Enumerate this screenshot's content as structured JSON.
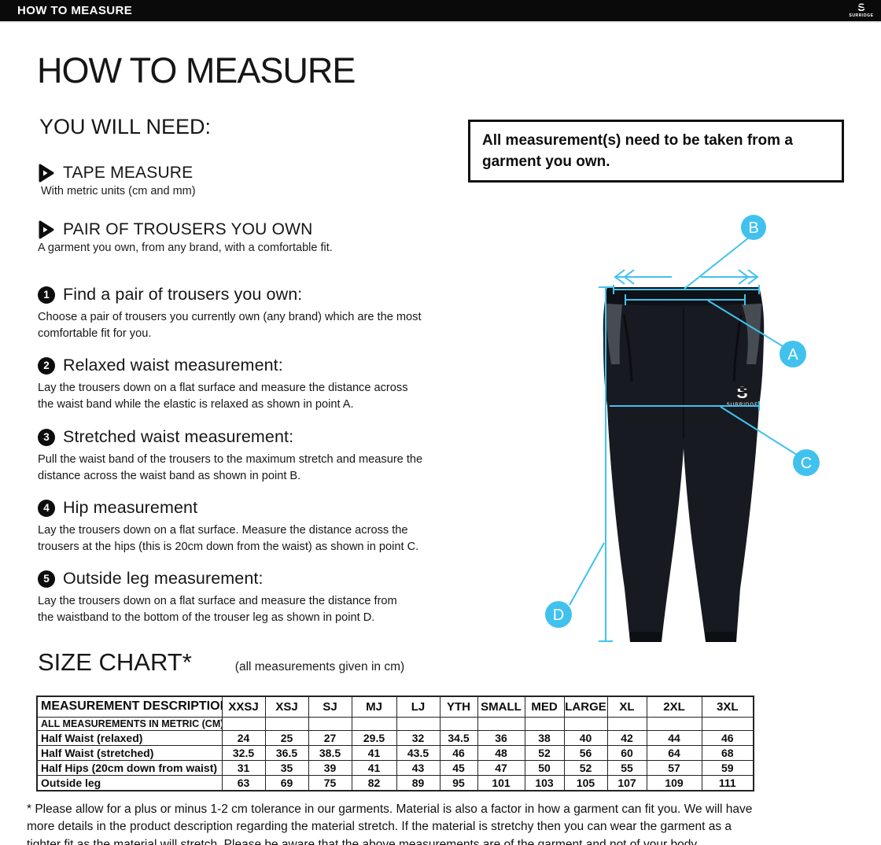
{
  "header": {
    "title": "HOW TO MEASURE",
    "brand_initial": "S",
    "brand": "SURRIDGE"
  },
  "page": {
    "title": "HOW TO MEASURE",
    "you_will_need": {
      "heading": "YOU WILL NEED:",
      "items": [
        {
          "label": "TAPE MEASURE",
          "description": "With metric units (cm and mm)"
        },
        {
          "label": "PAIR OF TROUSERS YOU OWN",
          "description": "A garment you own, from any brand, with a comfortable fit."
        }
      ]
    },
    "note": "All measurement(s) need to be taken from a\ngarment you own.",
    "steps": [
      {
        "number": "1",
        "title": "Find a pair of trousers you own:",
        "description": "Choose a pair of trousers you currently own (any brand) which are the most\ncomfortable fit for you."
      },
      {
        "number": "2",
        "title": "Relaxed waist measurement:",
        "description": "Lay the trousers down on a flat surface and measure the distance across\nthe waist band while the elastic is relaxed as shown in point A."
      },
      {
        "number": "3",
        "title": "Stretched waist measurement:",
        "description": "Pull the waist band of the trousers to the maximum stretch and measure the\ndistance across the waist band as shown in point B."
      },
      {
        "number": "4",
        "title": "Hip measurement",
        "description": "Lay the trousers down on a flat surface. Measure the distance across the\ntrousers at the hips (this is 20cm down from the waist)  as shown in point C."
      },
      {
        "number": "5",
        "title": "Outside leg measurement:",
        "description": "Lay the trousers down on a flat surface and measure the distance from\nthe waistband to the bottom of the trouser  leg as shown in point D."
      }
    ],
    "diagram": {
      "labels": {
        "a": "A",
        "b": "B",
        "c": "C",
        "d": "D"
      },
      "logo_initial": "S",
      "logo_text": "SURRIDGE",
      "annotation_color": "#41c2ee",
      "garment_color": "#171a20",
      "panel_color": "#474b52"
    },
    "size_chart": {
      "heading": "SIZE CHART*",
      "subheading": "(all measurements given in cm)",
      "columns": [
        "MEASUREMENT DESCRIPTION",
        "XXSJ",
        "XSJ",
        "SJ",
        "MJ",
        "LJ",
        "YTH",
        "SMALL",
        "MED",
        "LARGE",
        "XL",
        "2XL",
        "3XL"
      ],
      "metric_row_label": "ALL MEASUREMENTS IN METRIC (CM)",
      "rows": [
        {
          "label": "Half Waist (relaxed)",
          "values": [
            "24",
            "25",
            "27",
            "29.5",
            "32",
            "34.5",
            "36",
            "38",
            "40",
            "42",
            "44",
            "46"
          ]
        },
        {
          "label": "Half Waist (stretched)",
          "values": [
            "32.5",
            "36.5",
            "38.5",
            "41",
            "43.5",
            "46",
            "48",
            "52",
            "56",
            "60",
            "64",
            "68"
          ]
        },
        {
          "label": "Half Hips (20cm down from waist)",
          "values": [
            "31",
            "35",
            "39",
            "41",
            "43",
            "45",
            "47",
            "50",
            "52",
            "55",
            "57",
            "59"
          ]
        },
        {
          "label": "Outside leg",
          "values": [
            "63",
            "69",
            "75",
            "82",
            "89",
            "95",
            "101",
            "103",
            "105",
            "107",
            "109",
            "111"
          ]
        }
      ]
    },
    "footnote": "* Please allow for a plus or minus 1-2 cm tolerance in our garments. Material is also a factor in how a garment can fit you. We will have\nmore details in the product description regarding the material stretch.  If the material is stretchy then you can wear the garment as a\ntighter fit as the material will stretch.  Please be aware that the above measurements are of the garment and not of your body."
  }
}
